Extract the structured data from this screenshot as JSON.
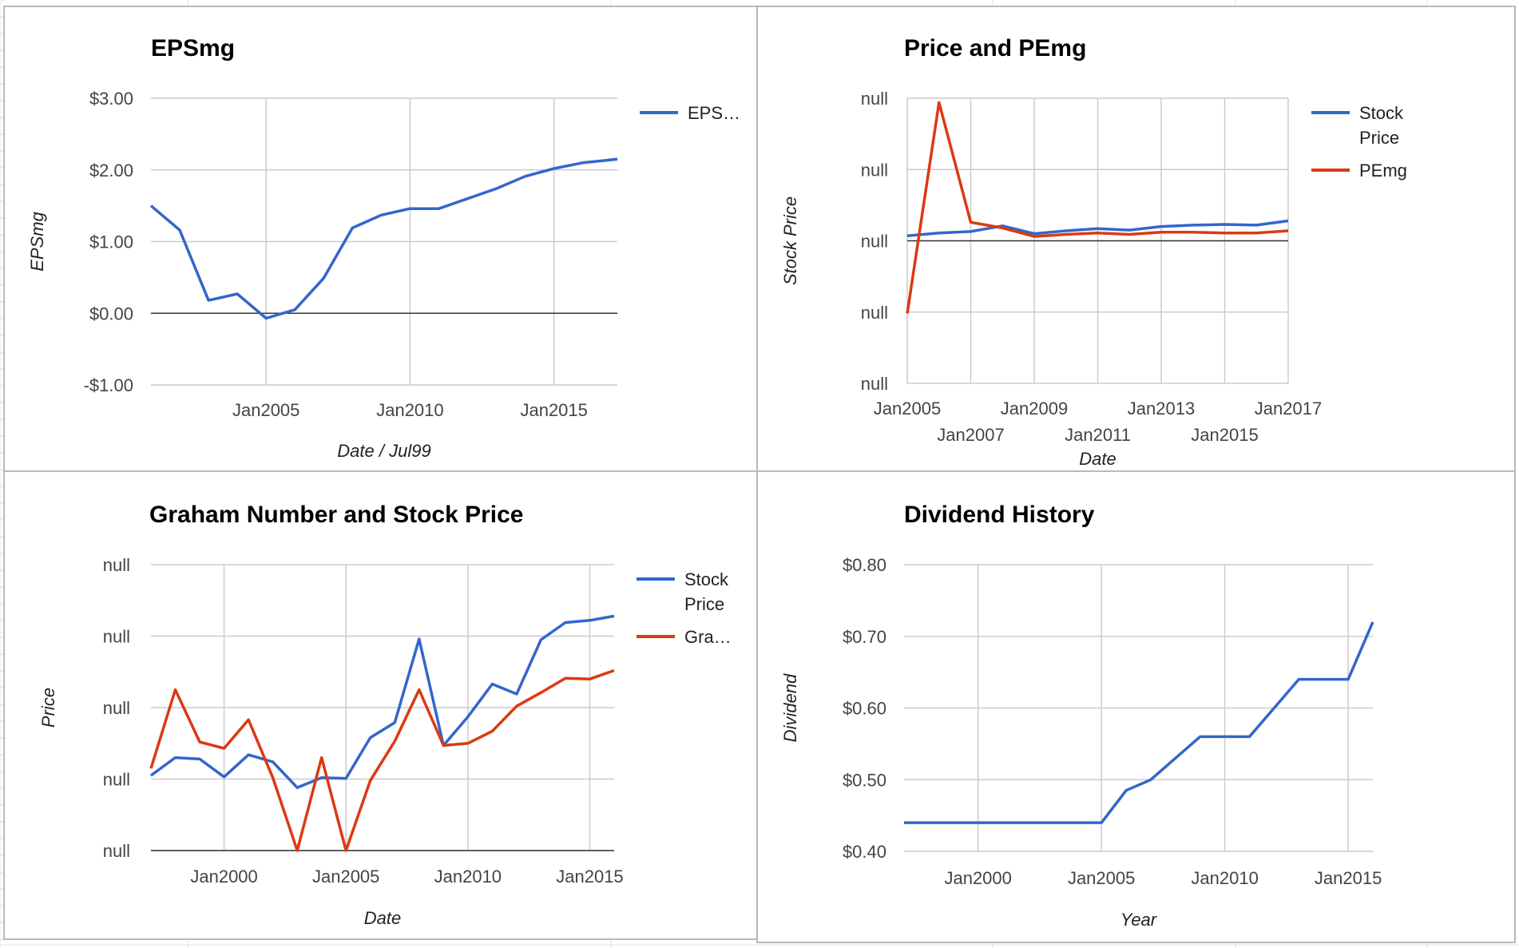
{
  "colors": {
    "blue": "#3366cc",
    "red": "#dc3912"
  },
  "chart_data": [
    {
      "type": "line",
      "title": "EPSmg",
      "xlabel": "Date / Jul99",
      "ylabel": "EPSmg",
      "x_kind": "year",
      "xlim": [
        2001,
        2017.2
      ],
      "ylim": [
        -1.0,
        3.0
      ],
      "y_ticks": [
        {
          "value": 3.0,
          "label": "$3.00"
        },
        {
          "value": 2.0,
          "label": "$2.00"
        },
        {
          "value": 1.0,
          "label": "$1.00"
        },
        {
          "value": 0.0,
          "label": "$0.00"
        },
        {
          "value": -1.0,
          "label": "-$1.00"
        }
      ],
      "x_gridlines": [
        2005,
        2010,
        2015
      ],
      "x_ticks": [
        {
          "value": 2005,
          "label": "Jan2005",
          "row": 0
        },
        {
          "value": 2010,
          "label": "Jan2010",
          "row": 0
        },
        {
          "value": 2015,
          "label": "Jan2015",
          "row": 0
        }
      ],
      "baseline": 0,
      "legend": "right",
      "legend_labels": [
        [
          "EPS…"
        ]
      ],
      "series": [
        {
          "color": "#3366cc",
          "x": [
            2001,
            2002,
            2003,
            2004,
            2005,
            2006,
            2007,
            2008,
            2009,
            2010,
            2011,
            2012,
            2013,
            2014,
            2015,
            2016,
            2017.2
          ],
          "values": [
            1.5,
            1.16,
            0.18,
            0.27,
            -0.07,
            0.05,
            0.49,
            1.19,
            1.37,
            1.46,
            1.46,
            1.6,
            1.74,
            1.91,
            2.02,
            2.1,
            2.15
          ]
        }
      ]
    },
    {
      "type": "line",
      "title": "Price and PEmg",
      "xlabel": "Date",
      "ylabel": "Stock Price",
      "x_kind": "year",
      "xlim": [
        2005,
        2017
      ],
      "ylim": [
        -2,
        2
      ],
      "y_ticks": [
        {
          "value": 2,
          "label": "null"
        },
        {
          "value": 1,
          "label": "null"
        },
        {
          "value": 0,
          "label": "null"
        },
        {
          "value": -1,
          "label": "null"
        },
        {
          "value": -2,
          "label": "null"
        }
      ],
      "x_gridlines": [
        2005,
        2007,
        2009,
        2011,
        2013,
        2015,
        2017
      ],
      "x_ticks": [
        {
          "value": 2005,
          "label": "Jan2005",
          "row": 0
        },
        {
          "value": 2007,
          "label": "Jan2007",
          "row": 1
        },
        {
          "value": 2009,
          "label": "Jan2009",
          "row": 0
        },
        {
          "value": 2011,
          "label": "Jan2011",
          "row": 1
        },
        {
          "value": 2013,
          "label": "Jan2013",
          "row": 0
        },
        {
          "value": 2015,
          "label": "Jan2015",
          "row": 1
        },
        {
          "value": 2017,
          "label": "Jan2017",
          "row": 0
        }
      ],
      "baseline": 0,
      "legend": "right",
      "legend_labels": [
        [
          "Stock",
          "Price"
        ],
        [
          "PEmg"
        ]
      ],
      "series": [
        {
          "name": "Stock Price",
          "color": "#3366cc",
          "x": [
            2005,
            2006,
            2007,
            2008,
            2009,
            2010,
            2011,
            2012,
            2013,
            2014,
            2015,
            2016,
            2017
          ],
          "values": [
            0.07,
            0.11,
            0.13,
            0.21,
            0.1,
            0.14,
            0.17,
            0.15,
            0.2,
            0.22,
            0.23,
            0.22,
            0.28
          ]
        },
        {
          "name": "PEmg",
          "color": "#dc3912",
          "x": [
            2005,
            2006,
            2007,
            2008,
            2009,
            2010,
            2011,
            2012,
            2013,
            2014,
            2015,
            2016,
            2017
          ],
          "values": [
            -1.02,
            1.94,
            0.26,
            0.18,
            0.06,
            0.09,
            0.11,
            0.09,
            0.12,
            0.12,
            0.11,
            0.11,
            0.14
          ]
        }
      ]
    },
    {
      "type": "line",
      "title": "Graham Number and Stock Price",
      "xlabel": "Date",
      "ylabel": "Price",
      "x_kind": "year",
      "xlim": [
        1997,
        2016
      ],
      "ylim": [
        0,
        4
      ],
      "y_ticks": [
        {
          "value": 4,
          "label": "null"
        },
        {
          "value": 3,
          "label": "null"
        },
        {
          "value": 2,
          "label": "null"
        },
        {
          "value": 1,
          "label": "null"
        },
        {
          "value": 0,
          "label": "null"
        }
      ],
      "x_gridlines": [
        2000,
        2005,
        2010,
        2015
      ],
      "x_ticks": [
        {
          "value": 2000,
          "label": "Jan2000",
          "row": 0
        },
        {
          "value": 2005,
          "label": "Jan2005",
          "row": 0
        },
        {
          "value": 2010,
          "label": "Jan2010",
          "row": 0
        },
        {
          "value": 2015,
          "label": "Jan2015",
          "row": 0
        }
      ],
      "baseline": 0,
      "legend": "right",
      "legend_labels": [
        [
          "Stock",
          "Price"
        ],
        [
          "Gra…"
        ]
      ],
      "series": [
        {
          "name": "Stock Price",
          "color": "#3366cc",
          "x": [
            1997,
            1998,
            1999,
            2000,
            2001,
            2002,
            2003,
            2004,
            2005,
            2006,
            2007,
            2008,
            2009,
            2010,
            2011,
            2012,
            2013,
            2014,
            2015,
            2016
          ],
          "values": [
            1.05,
            1.3,
            1.28,
            1.03,
            1.34,
            1.24,
            0.88,
            1.02,
            1.01,
            1.58,
            1.79,
            2.96,
            1.47,
            1.87,
            2.33,
            2.19,
            2.95,
            3.19,
            3.22,
            3.28
          ]
        },
        {
          "name": "Gra…",
          "color": "#dc3912",
          "x": [
            1997,
            1998,
            1999,
            2000,
            2001,
            2002,
            2003,
            2004,
            2005,
            2006,
            2007,
            2008,
            2009,
            2010,
            2011,
            2012,
            2013,
            2014,
            2015,
            2016
          ],
          "values": [
            1.15,
            2.25,
            1.52,
            1.43,
            1.83,
            1.02,
            0.0,
            1.3,
            0.0,
            0.98,
            1.53,
            2.25,
            1.47,
            1.5,
            1.67,
            2.02,
            2.21,
            2.41,
            2.4,
            2.52
          ]
        }
      ]
    },
    {
      "type": "line",
      "title": "Dividend History",
      "xlabel": "Year",
      "ylabel": "Dividend",
      "x_kind": "year",
      "xlim": [
        1997,
        2016
      ],
      "ylim": [
        0.4,
        0.8
      ],
      "y_ticks": [
        {
          "value": 0.8,
          "label": "$0.80"
        },
        {
          "value": 0.7,
          "label": "$0.70"
        },
        {
          "value": 0.6,
          "label": "$0.60"
        },
        {
          "value": 0.5,
          "label": "$0.50"
        },
        {
          "value": 0.4,
          "label": "$0.40"
        }
      ],
      "x_gridlines": [
        2000,
        2005,
        2010,
        2015
      ],
      "x_ticks": [
        {
          "value": 2000,
          "label": "Jan2000",
          "row": 0
        },
        {
          "value": 2005,
          "label": "Jan2005",
          "row": 0
        },
        {
          "value": 2010,
          "label": "Jan2010",
          "row": 0
        },
        {
          "value": 2015,
          "label": "Jan2015",
          "row": 0
        }
      ],
      "baseline": null,
      "legend": "none",
      "legend_labels": [],
      "series": [
        {
          "color": "#3366cc",
          "x": [
            1997,
            1998,
            1999,
            2000,
            2001,
            2002,
            2003,
            2004,
            2005,
            2006,
            2007,
            2008,
            2009,
            2010,
            2011,
            2012,
            2013,
            2014,
            2015,
            2016
          ],
          "values": [
            0.44,
            0.44,
            0.44,
            0.44,
            0.44,
            0.44,
            0.44,
            0.44,
            0.44,
            0.485,
            0.5,
            0.53,
            0.56,
            0.56,
            0.56,
            0.6,
            0.64,
            0.64,
            0.64,
            0.72
          ]
        }
      ]
    }
  ]
}
